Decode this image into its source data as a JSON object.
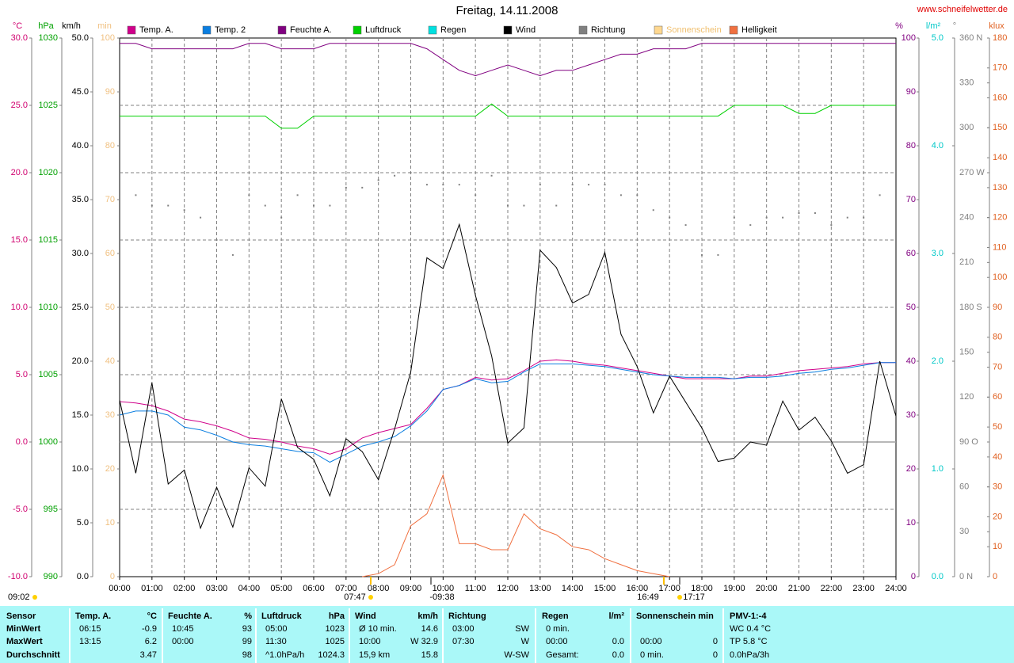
{
  "chart_data": {
    "type": "line",
    "title": "Freitag, 14.11.2008",
    "source": "www.schneifelwetter.de",
    "x": [
      0,
      0.5,
      1,
      1.5,
      2,
      2.5,
      3,
      3.5,
      4,
      4.5,
      5,
      5.5,
      6,
      6.5,
      7,
      7.5,
      8,
      8.5,
      9,
      9.5,
      10,
      10.5,
      11,
      11.5,
      12,
      12.5,
      13,
      13.5,
      14,
      14.5,
      15,
      15.5,
      16,
      16.5,
      17,
      17.5,
      18,
      18.5,
      19,
      19.5,
      20,
      20.5,
      21,
      21.5,
      22,
      22.5,
      23,
      23.5,
      24
    ],
    "xlim": [
      0,
      24
    ],
    "xticks": [
      {
        "value": 0,
        "label": "00:00"
      },
      {
        "value": 1,
        "label": "01:00"
      },
      {
        "value": 2,
        "label": "02:00"
      },
      {
        "value": 3,
        "label": "03:00"
      },
      {
        "value": 4,
        "label": "04:00"
      },
      {
        "value": 5,
        "label": "05:00"
      },
      {
        "value": 6,
        "label": "06:00"
      },
      {
        "value": 7,
        "label": "07:00"
      },
      {
        "value": 8,
        "label": "08:00"
      },
      {
        "value": 9,
        "label": "09:00"
      },
      {
        "value": 10,
        "label": "10:00"
      },
      {
        "value": 11,
        "label": "11:00"
      },
      {
        "value": 12,
        "label": "12:00"
      },
      {
        "value": 13,
        "label": "13:00"
      },
      {
        "value": 14,
        "label": "14:00"
      },
      {
        "value": 15,
        "label": "15:00"
      },
      {
        "value": 16,
        "label": "16:00"
      },
      {
        "value": 17,
        "label": "17:00"
      },
      {
        "value": 18,
        "label": "18:00"
      },
      {
        "value": 19,
        "label": "19:00"
      },
      {
        "value": 20,
        "label": "20:00"
      },
      {
        "value": 21,
        "label": "21:00"
      },
      {
        "value": 22,
        "label": "22:00"
      },
      {
        "value": 23,
        "label": "23:00"
      },
      {
        "value": 24,
        "label": "24:00"
      }
    ],
    "grid": true,
    "axes": [
      {
        "unit": "°C",
        "color": "#d0006f",
        "lim": [
          -10,
          30
        ],
        "ticks": [
          {
            "value": -10,
            "label": "-10.0"
          },
          {
            "value": -5,
            "label": "-5.0"
          },
          {
            "value": 0,
            "label": "0.0"
          },
          {
            "value": 5,
            "label": "5.0"
          },
          {
            "value": 10,
            "label": "10.0"
          },
          {
            "value": 15,
            "label": "15.0"
          },
          {
            "value": 20,
            "label": "20.0"
          },
          {
            "value": 25,
            "label": "25.0"
          },
          {
            "value": 30,
            "label": "30.0"
          }
        ]
      },
      {
        "unit": "hPa",
        "color": "#00a000",
        "lim": [
          990,
          1030
        ],
        "ticks": [
          990,
          995,
          1000,
          1005,
          1010,
          1015,
          1020,
          1025,
          1030
        ]
      },
      {
        "unit": "km/h",
        "color": "#000000",
        "lim": [
          0,
          50
        ],
        "ticks": [
          {
            "value": 0,
            "label": "0.0"
          },
          {
            "value": 5,
            "label": "5.0"
          },
          {
            "value": 10,
            "label": "10.0"
          },
          {
            "value": 15,
            "label": "15.0"
          },
          {
            "value": 20,
            "label": "20.0"
          },
          {
            "value": 25,
            "label": "25.0"
          },
          {
            "value": 30,
            "label": "30.0"
          },
          {
            "value": 35,
            "label": "35.0"
          },
          {
            "value": 40,
            "label": "40.0"
          },
          {
            "value": 45,
            "label": "45.0"
          },
          {
            "value": 50,
            "label": "50.0"
          }
        ]
      },
      {
        "unit": "min",
        "color": "#f0c080",
        "lim": [
          0,
          100
        ],
        "ticks": [
          0,
          10,
          20,
          30,
          40,
          50,
          60,
          70,
          80,
          90,
          100
        ]
      },
      {
        "unit": "%",
        "color": "#800080",
        "lim": [
          0,
          100
        ],
        "ticks": [
          0,
          10,
          20,
          30,
          40,
          50,
          60,
          70,
          80,
          90,
          100
        ]
      },
      {
        "unit": "l/m²",
        "color": "#00c8c8",
        "lim": [
          0,
          5
        ],
        "ticks": [
          {
            "value": 0,
            "label": "0.0"
          },
          {
            "value": 1,
            "label": "1.0"
          },
          {
            "value": 2,
            "label": "2.0"
          },
          {
            "value": 3,
            "label": "3.0"
          },
          {
            "value": 4,
            "label": "4.0"
          },
          {
            "value": 5,
            "label": "5.0"
          }
        ]
      },
      {
        "unit": "°",
        "color": "#808080",
        "lim": [
          0,
          360
        ],
        "ticks": [
          {
            "value": 0,
            "label": "0   N"
          },
          30,
          60,
          {
            "value": 90,
            "label": "90  O"
          },
          120,
          150,
          {
            "value": 180,
            "label": "180 S"
          },
          210,
          240,
          {
            "value": 270,
            "label": "270 W"
          },
          300,
          330,
          {
            "value": 360,
            "label": "360 N"
          }
        ]
      },
      {
        "unit": "klux",
        "color": "#e06020",
        "lim": [
          0,
          180
        ],
        "ticks": [
          0,
          10,
          20,
          30,
          40,
          50,
          60,
          70,
          80,
          90,
          100,
          110,
          120,
          130,
          140,
          150,
          160,
          170,
          180
        ]
      }
    ],
    "series": [
      {
        "name": "Temp. A.",
        "color": "#d0008a",
        "axis": 0,
        "values": [
          3.0,
          2.9,
          2.7,
          2.3,
          1.7,
          1.5,
          1.2,
          0.8,
          0.3,
          0.2,
          0.0,
          -0.3,
          -0.5,
          -0.9,
          -0.5,
          0.3,
          0.7,
          1.0,
          1.3,
          2.5,
          3.9,
          4.2,
          4.8,
          4.6,
          4.7,
          5.3,
          6.0,
          6.1,
          6.0,
          5.8,
          5.7,
          5.5,
          5.3,
          5.1,
          4.9,
          4.7,
          4.7,
          4.7,
          4.7,
          4.9,
          4.9,
          5.1,
          5.3,
          5.4,
          5.5,
          5.6,
          5.8,
          5.9,
          5.9
        ]
      },
      {
        "name": "Temp. 2",
        "color": "#0a7ee0",
        "axis": 0,
        "values": [
          2.0,
          2.3,
          2.3,
          2.0,
          1.1,
          0.9,
          0.5,
          0.0,
          -0.2,
          -0.3,
          -0.5,
          -0.7,
          -0.8,
          -1.5,
          -0.9,
          -0.3,
          0.0,
          0.4,
          1.2,
          2.3,
          3.9,
          4.2,
          4.7,
          4.4,
          4.5,
          5.2,
          5.8,
          5.8,
          5.8,
          5.7,
          5.6,
          5.4,
          5.2,
          5.0,
          4.9,
          4.8,
          4.8,
          4.8,
          4.7,
          4.8,
          4.8,
          4.9,
          5.1,
          5.2,
          5.4,
          5.5,
          5.7,
          5.9,
          5.9
        ]
      },
      {
        "name": "Feuchte A.",
        "color": "#800080",
        "axis": 4,
        "values": [
          99,
          99,
          98,
          98,
          98,
          98,
          98,
          98,
          99,
          99,
          98,
          98,
          98,
          99,
          99,
          99,
          99,
          99,
          99,
          98,
          96,
          94,
          93,
          94,
          95,
          94,
          93,
          94,
          94,
          95,
          96,
          97,
          97,
          98,
          98,
          98,
          99,
          99,
          99,
          99,
          99,
          99,
          99,
          99,
          99,
          99,
          99,
          99,
          99
        ]
      },
      {
        "name": "Luftdruck",
        "color": "#00d000",
        "axis": 1,
        "values": [
          1024.2,
          1024.2,
          1024.2,
          1024.2,
          1024.2,
          1024.2,
          1024.2,
          1024.2,
          1024.2,
          1024.2,
          1023.3,
          1023.3,
          1024.2,
          1024.2,
          1024.2,
          1024.2,
          1024.2,
          1024.2,
          1024.2,
          1024.2,
          1024.2,
          1024.2,
          1024.2,
          1025.1,
          1024.2,
          1024.2,
          1024.2,
          1024.2,
          1024.2,
          1024.2,
          1024.2,
          1024.2,
          1024.2,
          1024.2,
          1024.2,
          1024.2,
          1024.2,
          1024.2,
          1025.0,
          1025.0,
          1025.0,
          1025.0,
          1024.4,
          1024.4,
          1025.0,
          1025.0,
          1025.0,
          1025.0,
          1025.0
        ]
      },
      {
        "name": "Regen",
        "color": "#00e0e0",
        "axis": 5
      },
      {
        "name": "Wind",
        "color": "#000000",
        "axis": 2,
        "values": [
          16.4,
          9.6,
          18.0,
          8.6,
          9.9,
          4.5,
          8.3,
          4.6,
          10.1,
          8.4,
          16.5,
          12.0,
          10.9,
          7.5,
          12.8,
          11.6,
          9.0,
          13.7,
          19.0,
          29.6,
          28.6,
          32.7,
          26.1,
          20.5,
          12.4,
          13.8,
          30.3,
          28.7,
          25.4,
          26.2,
          30.1,
          22.5,
          19.5,
          15.2,
          18.6,
          16.2,
          13.8,
          10.7,
          11.0,
          12.5,
          12.2,
          16.3,
          13.6,
          14.8,
          12.6,
          9.6,
          10.4,
          20.0,
          14.9
        ]
      },
      {
        "name": "Richtung",
        "color": "#808080",
        "axis": 6,
        "style": "dots",
        "values": [
          235,
          255,
          248,
          248,
          245,
          240,
          225,
          215,
          255,
          248,
          240,
          255,
          248,
          248,
          260,
          260,
          265,
          268,
          270,
          262,
          262,
          262,
          255,
          268,
          248,
          248,
          262,
          248,
          262,
          262,
          262,
          255,
          255,
          245,
          240,
          235,
          215,
          215,
          240,
          235,
          240,
          240,
          243,
          243,
          235,
          240,
          240,
          255,
          240
        ]
      },
      {
        "name": "Sonnenschein",
        "color": "#ffd890",
        "axis": 3
      },
      {
        "name": "Helligkeit",
        "color": "#f07040",
        "axis": 7,
        "values": [
          null,
          null,
          null,
          null,
          null,
          null,
          null,
          null,
          null,
          null,
          null,
          null,
          null,
          null,
          null,
          0,
          1,
          4,
          17,
          21,
          34,
          11,
          11,
          9,
          9,
          21,
          16,
          14,
          10,
          9,
          6,
          4,
          2,
          1,
          0,
          null,
          null,
          null,
          null,
          null,
          null,
          null,
          null,
          null,
          null,
          null,
          null,
          null,
          null
        ]
      }
    ],
    "annotations": [
      "09:02",
      "07:47",
      "-09:38",
      "16:49",
      "17:17"
    ]
  },
  "table": {
    "blocks": [
      {
        "header": [
          "Sensor"
        ],
        "rows": [
          [
            "MinWert"
          ],
          [
            "MaxWert"
          ],
          [
            "Durchschnitt"
          ]
        ]
      },
      {
        "header": [
          "Temp. A.",
          "°C"
        ],
        "rows": [
          [
            "06:15",
            "-0.9"
          ],
          [
            "13:15",
            "6.2"
          ],
          [
            null,
            "3.47"
          ]
        ]
      },
      {
        "header": [
          "Feuchte A.",
          "%"
        ],
        "rows": [
          [
            "10:45",
            "93"
          ],
          [
            "00:00",
            "99"
          ],
          [
            null,
            "98"
          ]
        ]
      },
      {
        "header": [
          "Luftdruck",
          "hPa"
        ],
        "rows": [
          [
            "05:00",
            "1023"
          ],
          [
            "11:30",
            "1025"
          ],
          [
            "^1.0hPa/h",
            "1024.3"
          ]
        ]
      },
      {
        "header": [
          "Wind",
          "km/h"
        ],
        "rows": [
          [
            "Ø 10 min.",
            "14.6"
          ],
          [
            "10:00",
            "W 32.9"
          ],
          [
            "15,9 km",
            "15.8"
          ]
        ]
      },
      {
        "header": [
          "Richtung",
          null
        ],
        "rows": [
          [
            "03:00",
            "SW"
          ],
          [
            "07:30",
            "W"
          ],
          [
            null,
            "W-SW"
          ]
        ]
      },
      {
        "header": [
          "Regen",
          "l/m²"
        ],
        "rows": [
          [
            "0 min.",
            null
          ],
          [
            "00:00",
            "0.0"
          ],
          [
            "Gesamt:",
            "0.0"
          ]
        ]
      },
      {
        "header": [
          "Sonnenschein min",
          null
        ],
        "rows": [
          [
            null,
            null
          ],
          [
            "00:00",
            "0"
          ],
          [
            "0 min.",
            "0"
          ]
        ]
      },
      {
        "header": [
          "PMV-1:-4"
        ],
        "rows": [
          [
            "WC 0.4 °C"
          ],
          [
            "TP 5.8 °C"
          ],
          [
            "0.0hPa/3h"
          ]
        ]
      }
    ]
  }
}
